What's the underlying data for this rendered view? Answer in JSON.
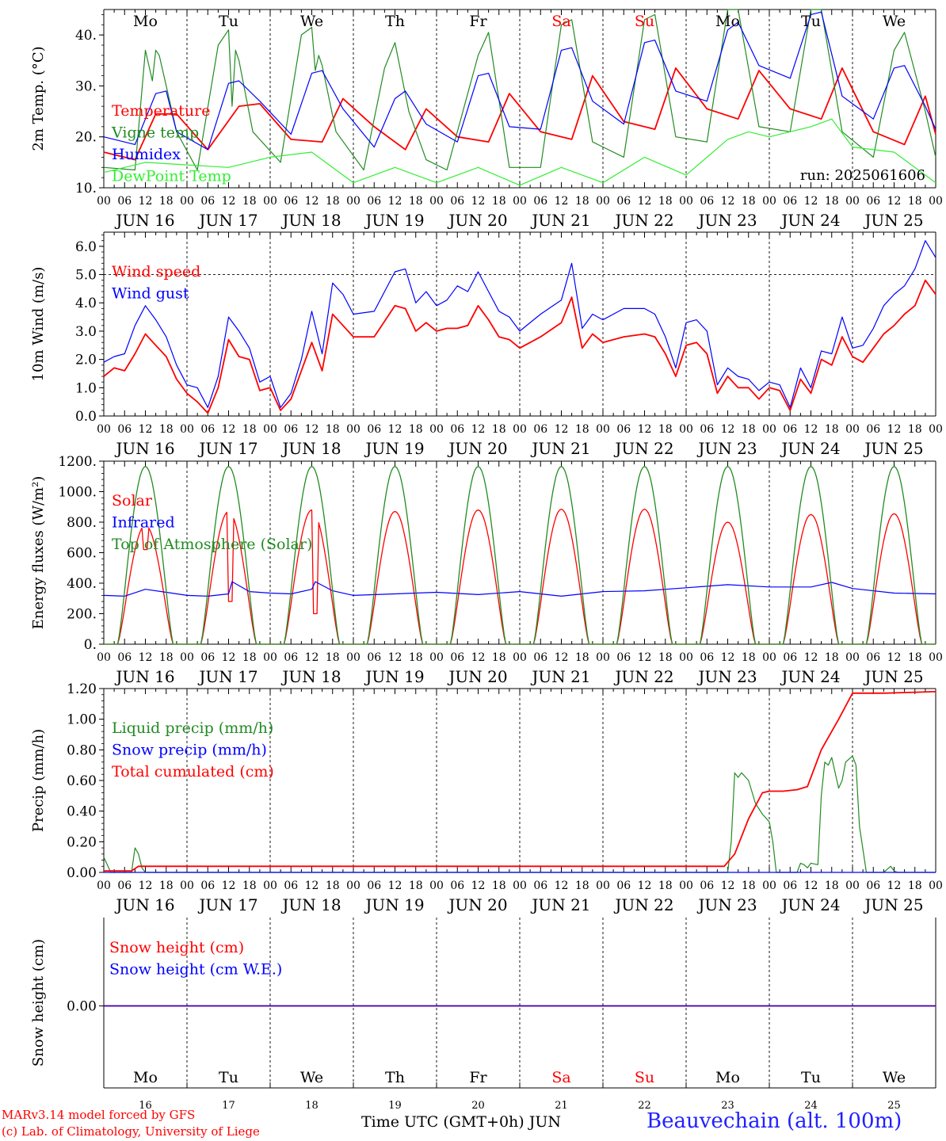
{
  "run_label": "run: 2025061606",
  "days": {
    "weekdays": [
      "Mo",
      "Tu",
      "We",
      "Th",
      "Fr",
      "Sa",
      "Su",
      "Mo",
      "Tu",
      "We"
    ],
    "weekend_flags": [
      false,
      false,
      false,
      false,
      false,
      true,
      true,
      false,
      false,
      false
    ],
    "dates": [
      "JUN 16",
      "JUN 17",
      "JUN 18",
      "JUN 19",
      "JUN 20",
      "JUN 21",
      "JUN 22",
      "JUN 23",
      "JUN 24",
      "JUN 25"
    ],
    "day_numbers": [
      "16",
      "17",
      "18",
      "19",
      "20",
      "21",
      "22",
      "23",
      "24",
      "25"
    ],
    "hour_labels": [
      "00",
      "06",
      "12",
      "18"
    ]
  },
  "colors": {
    "red": "#ff0000",
    "green": "#228b22",
    "blue": "#0000ff",
    "lightgreen": "#33ee33",
    "grid": "#000000"
  },
  "footer": {
    "credit_line1": "MARv3.14 model forced by GFS",
    "credit_line2": "(c) Lab. of Climatology, University of Liege",
    "x_axis_title": "Time UTC (GMT+0h) JUN",
    "station": "Beauvechain (alt. 100m)"
  },
  "chart_data": [
    {
      "type": "line",
      "ylabel": "2m Temp. (°C)",
      "ylim": [
        10,
        45
      ],
      "yticks": [
        10,
        20,
        30,
        40
      ],
      "ytick_labels": [
        "10.",
        "20.",
        "30.",
        "40."
      ],
      "x_unit": "hours since Jun 16 00 UTC",
      "series": [
        {
          "name": "Temperature",
          "color": "red",
          "x": [
            0,
            9,
            15,
            21,
            30,
            39,
            45,
            54,
            63,
            69,
            78,
            87,
            93,
            102,
            111,
            117,
            126,
            135,
            141,
            150,
            159,
            165,
            174,
            183,
            189,
            198,
            207,
            213,
            222,
            231,
            237,
            240
          ],
          "values": [
            17,
            15.5,
            24.5,
            24.5,
            17.5,
            26,
            26.5,
            19.5,
            19,
            27.5,
            22,
            17.5,
            25.5,
            20,
            19,
            28.5,
            21,
            19.5,
            32,
            23,
            21.5,
            33.5,
            25.5,
            23.5,
            33,
            25.5,
            23.5,
            33.5,
            21,
            18.5,
            28,
            20.5
          ]
        },
        {
          "name": "Vigne temp",
          "color": "green",
          "x": [
            0,
            9,
            12,
            14,
            15,
            16,
            18,
            21,
            27,
            33,
            36,
            37,
            38,
            39,
            43,
            51,
            57,
            60,
            61,
            62,
            63,
            67,
            75,
            81,
            84,
            88,
            93,
            99,
            108,
            111,
            117,
            126,
            132,
            135,
            141,
            150,
            156,
            159,
            165,
            174,
            180,
            183,
            189,
            198,
            204,
            207,
            213,
            222,
            228,
            231,
            237,
            240
          ],
          "values": [
            14,
            13.5,
            37,
            31,
            37,
            36,
            30,
            21,
            13.5,
            38,
            41,
            26,
            37,
            35,
            21,
            15,
            40,
            41.5,
            33,
            36,
            34,
            21,
            13.5,
            33.5,
            38.5,
            25,
            15.5,
            13.5,
            36,
            40.5,
            14,
            14,
            42,
            43,
            19,
            16,
            43,
            44,
            20,
            19,
            45,
            45,
            22,
            21,
            45,
            45,
            21,
            16,
            37,
            40.5,
            25,
            16
          ]
        },
        {
          "name": "Humidex",
          "color": "blue",
          "x": [
            0,
            9,
            15,
            18,
            21,
            30,
            36,
            39,
            45,
            54,
            60,
            63,
            69,
            78,
            84,
            87,
            93,
            102,
            108,
            111,
            117,
            126,
            132,
            135,
            141,
            150,
            156,
            159,
            165,
            174,
            180,
            183,
            189,
            198,
            204,
            207,
            213,
            222,
            228,
            231,
            237,
            240
          ],
          "values": [
            20,
            18.5,
            28.5,
            29,
            21,
            17.5,
            30.5,
            31,
            27,
            20.5,
            32.5,
            33,
            25.5,
            18,
            27.5,
            29,
            22.5,
            19,
            32,
            32.5,
            22,
            21.5,
            37,
            37.5,
            27,
            22.5,
            38.5,
            39,
            29,
            27,
            41,
            42.5,
            34,
            31.5,
            44,
            44.5,
            28,
            23.5,
            33.5,
            34,
            26,
            21.5
          ]
        },
        {
          "name": "DewPoint Temp",
          "color": "lightgreen",
          "x": [
            0,
            12,
            24,
            36,
            48,
            60,
            72,
            84,
            96,
            108,
            120,
            132,
            144,
            156,
            168,
            180,
            186,
            192,
            204,
            210,
            216,
            228,
            240
          ],
          "values": [
            13,
            15,
            14.5,
            14,
            16,
            17,
            11,
            14,
            11,
            14,
            10.5,
            14,
            11,
            16,
            12.5,
            19.5,
            21,
            20,
            22,
            23.5,
            18,
            17,
            11
          ]
        }
      ]
    },
    {
      "type": "line",
      "ylabel": "10m Wind (m/s)",
      "ylim": [
        0,
        6.5
      ],
      "yticks": [
        0,
        1,
        2,
        3,
        4,
        5,
        6
      ],
      "ytick_labels": [
        "0.0",
        "1.0",
        "2.0",
        "3.0",
        "4.0",
        "5.0",
        "6.0"
      ],
      "ref_line": 5.0,
      "x_unit": "hours since Jun 16 00 UTC",
      "series": [
        {
          "name": "Wind speed",
          "color": "red",
          "x": [
            0,
            3,
            6,
            9,
            12,
            15,
            18,
            21,
            24,
            27,
            30,
            33,
            36,
            39,
            42,
            45,
            48,
            51,
            54,
            57,
            60,
            63,
            66,
            69,
            72,
            78,
            84,
            87,
            90,
            93,
            96,
            99,
            102,
            105,
            108,
            111,
            114,
            117,
            120,
            126,
            132,
            135,
            138,
            141,
            144,
            150,
            156,
            159,
            162,
            165,
            168,
            171,
            174,
            177,
            180,
            183,
            186,
            189,
            192,
            195,
            198,
            201,
            204,
            207,
            210,
            213,
            216,
            219,
            222,
            225,
            228,
            231,
            234,
            237,
            240
          ],
          "values": [
            1.4,
            1.7,
            1.6,
            2.2,
            2.9,
            2.5,
            2.1,
            1.3,
            0.8,
            0.5,
            0.1,
            1.0,
            2.7,
            2.1,
            2.0,
            0.9,
            1.0,
            0.2,
            0.6,
            1.6,
            2.6,
            1.6,
            3.6,
            3.2,
            2.8,
            2.8,
            3.9,
            3.8,
            3.0,
            3.3,
            3.0,
            3.1,
            3.1,
            3.2,
            3.9,
            3.4,
            2.8,
            2.7,
            2.4,
            2.8,
            3.3,
            4.2,
            2.4,
            2.9,
            2.6,
            2.8,
            2.9,
            2.8,
            2.2,
            1.4,
            2.5,
            2.6,
            2.2,
            0.8,
            1.4,
            1.0,
            1.0,
            0.6,
            1.0,
            0.9,
            0.2,
            1.3,
            0.8,
            2.0,
            1.8,
            2.8,
            2.1,
            1.9,
            2.4,
            2.9,
            3.2,
            3.6,
            3.9,
            4.8,
            4.3
          ]
        },
        {
          "name": "Wind gust",
          "color": "blue",
          "x": [
            0,
            3,
            6,
            9,
            12,
            15,
            18,
            21,
            24,
            27,
            30,
            33,
            36,
            39,
            42,
            45,
            48,
            51,
            54,
            57,
            60,
            63,
            66,
            69,
            72,
            78,
            84,
            87,
            90,
            93,
            96,
            99,
            102,
            105,
            108,
            111,
            114,
            117,
            120,
            126,
            132,
            135,
            138,
            141,
            144,
            150,
            156,
            159,
            162,
            165,
            168,
            171,
            174,
            177,
            180,
            183,
            186,
            189,
            192,
            195,
            198,
            201,
            204,
            207,
            210,
            213,
            216,
            219,
            222,
            225,
            228,
            231,
            234,
            237,
            240
          ],
          "values": [
            1.9,
            2.1,
            2.2,
            3.2,
            3.9,
            3.4,
            2.8,
            1.8,
            1.1,
            1.0,
            0.3,
            1.4,
            3.5,
            3.0,
            2.4,
            1.2,
            1.4,
            0.3,
            0.8,
            2.0,
            3.7,
            2.2,
            4.7,
            4.3,
            3.6,
            3.7,
            5.1,
            5.2,
            4.0,
            4.4,
            3.9,
            4.1,
            4.6,
            4.4,
            5.1,
            4.4,
            3.7,
            3.5,
            3.0,
            3.6,
            4.1,
            5.4,
            3.1,
            3.6,
            3.4,
            3.8,
            3.8,
            3.6,
            2.8,
            1.7,
            3.3,
            3.4,
            3.0,
            1.1,
            1.7,
            1.4,
            1.3,
            0.9,
            1.2,
            1.1,
            0.3,
            1.7,
            1.0,
            2.3,
            2.2,
            3.5,
            2.4,
            2.5,
            3.1,
            3.9,
            4.3,
            4.6,
            5.2,
            6.2,
            5.6
          ]
        }
      ]
    },
    {
      "type": "line",
      "ylabel": "Energy fluxes (W/m²)",
      "ylim": [
        0,
        1200
      ],
      "yticks": [
        0,
        200,
        400,
        600,
        800,
        1000,
        1200
      ],
      "ytick_labels": [
        "0.",
        "200.",
        "400.",
        "600.",
        "800.",
        "1000.",
        "1200."
      ],
      "x_unit": "hours since Jun 16 00 UTC",
      "diurnal": {
        "sunrise_hour": 4,
        "sunset_hour": 20,
        "noon_hour": 12
      },
      "series": [
        {
          "name": "Solar",
          "color": "red",
          "daily_peak": [
            780,
            870,
            880,
            870,
            880,
            885,
            885,
            800,
            850,
            855
          ],
          "dips": [
            {
              "x": 12,
              "value": 620
            },
            {
              "x": 36.5,
              "value": 280
            },
            {
              "x": 61,
              "value": 200
            }
          ]
        },
        {
          "name": "Infrared",
          "color": "blue",
          "x": [
            0,
            6,
            12,
            18,
            24,
            30,
            36,
            37,
            42,
            48,
            54,
            60,
            61,
            66,
            72,
            84,
            96,
            108,
            120,
            132,
            144,
            156,
            168,
            180,
            192,
            204,
            210,
            216,
            228,
            240
          ],
          "values": [
            320,
            315,
            360,
            340,
            320,
            315,
            330,
            410,
            345,
            335,
            330,
            360,
            410,
            350,
            320,
            330,
            340,
            325,
            345,
            315,
            345,
            350,
            370,
            390,
            375,
            375,
            405,
            365,
            335,
            330
          ]
        },
        {
          "name": "Top of Atmosphere (Solar)",
          "color": "green",
          "daily_peak": [
            1165,
            1165,
            1165,
            1165,
            1165,
            1165,
            1165,
            1165,
            1165,
            1165
          ]
        }
      ]
    },
    {
      "type": "line",
      "ylabel": "Precip (mm/h)",
      "ylim": [
        0,
        1.2
      ],
      "yticks": [
        0,
        0.2,
        0.4,
        0.6,
        0.8,
        1.0,
        1.2
      ],
      "ytick_labels": [
        "0.00",
        "0.20",
        "0.40",
        "0.60",
        "0.80",
        "1.00",
        "1.20"
      ],
      "x_unit": "hours since Jun 16 00 UTC",
      "series": [
        {
          "name": "Liquid precip (mm/h)",
          "color": "green",
          "x": [
            0,
            2,
            8,
            9,
            10,
            11,
            12,
            13,
            180,
            181,
            182,
            183,
            184,
            186,
            188,
            190,
            192,
            193,
            194,
            195,
            196,
            197,
            200,
            201,
            202,
            203,
            204,
            206,
            207,
            208,
            209,
            210,
            211,
            212,
            213,
            214,
            216,
            217,
            218,
            220,
            225,
            226,
            227,
            228,
            229,
            240
          ],
          "values": [
            0.1,
            0,
            0,
            0.16,
            0.12,
            0.03,
            0,
            0,
            0,
            0.2,
            0.65,
            0.62,
            0.65,
            0.6,
            0.45,
            0.38,
            0.33,
            0.2,
            0,
            0,
            0,
            0,
            0,
            0.06,
            0.05,
            0.03,
            0.06,
            0.05,
            0.5,
            0.72,
            0.7,
            0.75,
            0.65,
            0.55,
            0.6,
            0.72,
            0.76,
            0.7,
            0.3,
            0,
            0,
            0.02,
            0.04,
            0.01,
            0,
            0
          ]
        },
        {
          "name": "Snow precip (mm/h)",
          "color": "blue",
          "x": [
            0,
            240
          ],
          "values": [
            0,
            0
          ]
        },
        {
          "name": "Total cumulated (cm)",
          "color": "red",
          "x": [
            0,
            8,
            10,
            12,
            179,
            182,
            186,
            190,
            192,
            196,
            200,
            203,
            207,
            212,
            216,
            225,
            240
          ],
          "values": [
            0.01,
            0.01,
            0.04,
            0.04,
            0.04,
            0.12,
            0.35,
            0.52,
            0.53,
            0.53,
            0.54,
            0.56,
            0.8,
            1.0,
            1.17,
            1.17,
            1.18
          ]
        }
      ]
    },
    {
      "type": "line",
      "ylabel": "Snow height (cm)",
      "yticks": [
        0
      ],
      "ytick_labels": [
        "0.00"
      ],
      "x_unit": "hours since Jun 16 00 UTC",
      "series": [
        {
          "name": "Snow height (cm)",
          "color": "red",
          "x": [
            0,
            240
          ],
          "values": [
            0,
            0
          ]
        },
        {
          "name": "Snow height (cm W.E.)",
          "color": "blue",
          "x": [
            0,
            240
          ],
          "values": [
            0,
            0
          ]
        }
      ]
    }
  ]
}
